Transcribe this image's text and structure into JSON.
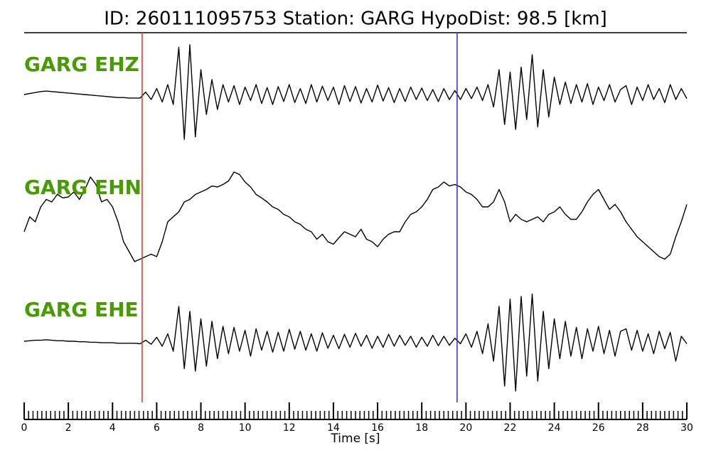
{
  "chart_data": {
    "type": "seismogram",
    "title": "ID: 260111095753   Station: GARG   HypoDist:    98.5 [km]",
    "xlabel": "Time [s]",
    "xlim": [
      0,
      30
    ],
    "xticks": [
      0,
      2,
      4,
      6,
      8,
      10,
      12,
      14,
      16,
      18,
      20,
      22,
      24,
      26,
      28,
      30
    ],
    "xminor": 0.2,
    "ylim": [
      -1,
      1
    ],
    "label_color": "#4a9a06",
    "markers": [
      {
        "x": 5.34,
        "color": "#e03c31"
      },
      {
        "x": 19.6,
        "color": "#3a3acd"
      }
    ],
    "x": [
      0,
      0.25,
      0.5,
      0.75,
      1,
      1.25,
      1.5,
      1.75,
      2,
      2.25,
      2.5,
      2.75,
      3,
      3.25,
      3.5,
      3.75,
      4,
      4.25,
      4.5,
      4.75,
      5,
      5.25,
      5.5,
      5.75,
      6,
      6.25,
      6.5,
      6.75,
      7,
      7.25,
      7.5,
      7.75,
      8,
      8.25,
      8.5,
      8.75,
      9,
      9.25,
      9.5,
      9.75,
      10,
      10.25,
      10.5,
      10.75,
      11,
      11.25,
      11.5,
      11.75,
      12,
      12.25,
      12.5,
      12.75,
      13,
      13.25,
      13.5,
      13.75,
      14,
      14.25,
      14.5,
      14.75,
      15,
      15.25,
      15.5,
      15.75,
      16,
      16.25,
      16.5,
      16.75,
      17,
      17.25,
      17.5,
      17.75,
      18,
      18.25,
      18.5,
      18.75,
      19,
      19.25,
      19.5,
      19.75,
      20,
      20.25,
      20.5,
      20.75,
      21,
      21.25,
      21.5,
      21.75,
      22,
      22.25,
      22.5,
      22.75,
      23,
      23.25,
      23.5,
      23.75,
      24,
      24.25,
      24.5,
      24.75,
      25,
      25.25,
      25.5,
      25.75,
      26,
      26.25,
      26.5,
      26.75,
      27,
      27.25,
      27.5,
      27.75,
      28,
      28.25,
      28.5,
      28.75,
      29,
      29.25,
      29.5,
      29.75,
      30
    ],
    "series": [
      {
        "name": "GARG EHZ",
        "color": "#000000",
        "values": [
          0,
          0.02,
          0.04,
          0.06,
          0.07,
          0.06,
          0.05,
          0.04,
          0.03,
          0.02,
          0.01,
          0,
          -0.01,
          -0.02,
          -0.03,
          -0.04,
          -0.05,
          -0.06,
          -0.06,
          -0.07,
          -0.07,
          -0.07,
          0.05,
          -0.1,
          0.12,
          -0.15,
          0.2,
          -0.2,
          0.95,
          -0.9,
          1.0,
          -0.85,
          0.5,
          -0.4,
          0.3,
          -0.3,
          0.2,
          -0.15,
          0.18,
          -0.2,
          0.15,
          -0.12,
          0.2,
          -0.18,
          0.14,
          -0.2,
          0.16,
          -0.14,
          0.2,
          -0.16,
          0.12,
          -0.18,
          0.2,
          -0.15,
          0.17,
          -0.12,
          0.15,
          -0.2,
          0.18,
          -0.14,
          0.16,
          -0.17,
          0.12,
          -0.15,
          0.19,
          -0.13,
          0.14,
          -0.16,
          0.12,
          -0.14,
          0.15,
          -0.1,
          0.13,
          -0.12,
          0.1,
          -0.14,
          0.12,
          -0.1,
          0.08,
          -0.1,
          0.12,
          -0.08,
          0.15,
          -0.12,
          0.2,
          -0.25,
          0.5,
          -0.6,
          0.45,
          -0.7,
          0.55,
          -0.5,
          0.8,
          -0.65,
          0.5,
          -0.45,
          0.35,
          -0.2,
          0.25,
          -0.18,
          0.2,
          -0.15,
          0.22,
          -0.2,
          0.15,
          -0.12,
          0.2,
          -0.15,
          0.1,
          0.18,
          -0.2,
          0.15,
          -0.12,
          0.2,
          -0.1,
          0.12,
          -0.16,
          0.2,
          -0.1,
          0.12,
          -0.08
        ]
      },
      {
        "name": "GARG EHN",
        "color": "#000000",
        "values": [
          -0.3,
          0.0,
          -0.1,
          0.2,
          0.35,
          0.3,
          0.45,
          0.38,
          0.4,
          0.5,
          0.35,
          0.55,
          0.8,
          0.65,
          0.3,
          0.35,
          0.2,
          -0.1,
          -0.5,
          -0.7,
          -0.9,
          -0.85,
          -0.8,
          -0.75,
          -0.8,
          -0.5,
          -0.1,
          0.0,
          0.1,
          0.3,
          0.35,
          0.45,
          0.5,
          0.55,
          0.62,
          0.6,
          0.65,
          0.72,
          0.9,
          0.85,
          0.7,
          0.6,
          0.45,
          0.38,
          0.3,
          0.2,
          0.15,
          0.05,
          0,
          -0.1,
          -0.15,
          -0.25,
          -0.3,
          -0.45,
          -0.35,
          -0.5,
          -0.55,
          -0.42,
          -0.3,
          -0.35,
          -0.4,
          -0.25,
          -0.45,
          -0.5,
          -0.6,
          -0.45,
          -0.35,
          -0.3,
          -0.3,
          -0.1,
          0.05,
          0.1,
          0.2,
          0.35,
          0.55,
          0.6,
          0.7,
          0.62,
          0.65,
          0.6,
          0.5,
          0.45,
          0.35,
          0.2,
          0.2,
          0.3,
          0.55,
          0.3,
          -0.1,
          0.05,
          -0.05,
          -0.1,
          -0.05,
          0.0,
          -0.1,
          0.05,
          0.1,
          0.2,
          0.05,
          -0.05,
          -0.05,
          0.1,
          0.3,
          0.45,
          0.55,
          0.35,
          0.15,
          0.25,
          0.1,
          -0.1,
          -0.25,
          -0.4,
          -0.5,
          -0.6,
          -0.7,
          -0.8,
          -0.85,
          -0.75,
          -0.4,
          -0.1,
          0.25
        ]
      },
      {
        "name": "GARG EHE",
        "color": "#000000",
        "values": [
          0,
          0.01,
          0.02,
          0.02,
          0.03,
          0.02,
          0.01,
          0.01,
          0,
          0,
          -0.01,
          -0.01,
          -0.02,
          -0.02,
          -0.03,
          -0.03,
          -0.03,
          -0.04,
          -0.04,
          -0.04,
          -0.04,
          -0.05,
          0.02,
          -0.06,
          0.08,
          -0.1,
          0.15,
          -0.2,
          0.7,
          -0.55,
          0.6,
          -0.6,
          0.45,
          -0.5,
          0.4,
          -0.35,
          0.3,
          -0.25,
          0.28,
          -0.2,
          0.22,
          -0.3,
          0.25,
          -0.18,
          0.2,
          -0.22,
          0.18,
          -0.2,
          0.24,
          -0.16,
          0.2,
          -0.18,
          0.15,
          -0.2,
          0.17,
          -0.14,
          0.12,
          -0.15,
          0.14,
          -0.12,
          0.16,
          -0.1,
          0.12,
          -0.14,
          0.1,
          -0.12,
          0.14,
          -0.1,
          0.12,
          -0.08,
          0.1,
          -0.12,
          0.08,
          -0.1,
          0.12,
          -0.09,
          0.1,
          -0.08,
          0.06,
          -0.05,
          0.15,
          -0.12,
          0.2,
          -0.25,
          0.35,
          -0.4,
          0.7,
          -0.9,
          0.85,
          -1.0,
          0.9,
          -0.7,
          0.95,
          -0.8,
          0.6,
          -0.55,
          0.45,
          -0.35,
          0.4,
          -0.3,
          0.28,
          -0.35,
          0.25,
          -0.2,
          0.3,
          -0.25,
          0.22,
          -0.3,
          0.2,
          0.25,
          -0.18,
          0.22,
          -0.2,
          0.15,
          -0.25,
          0.2,
          -0.15,
          0.18,
          -0.4,
          0.1,
          -0.05
        ]
      }
    ]
  }
}
